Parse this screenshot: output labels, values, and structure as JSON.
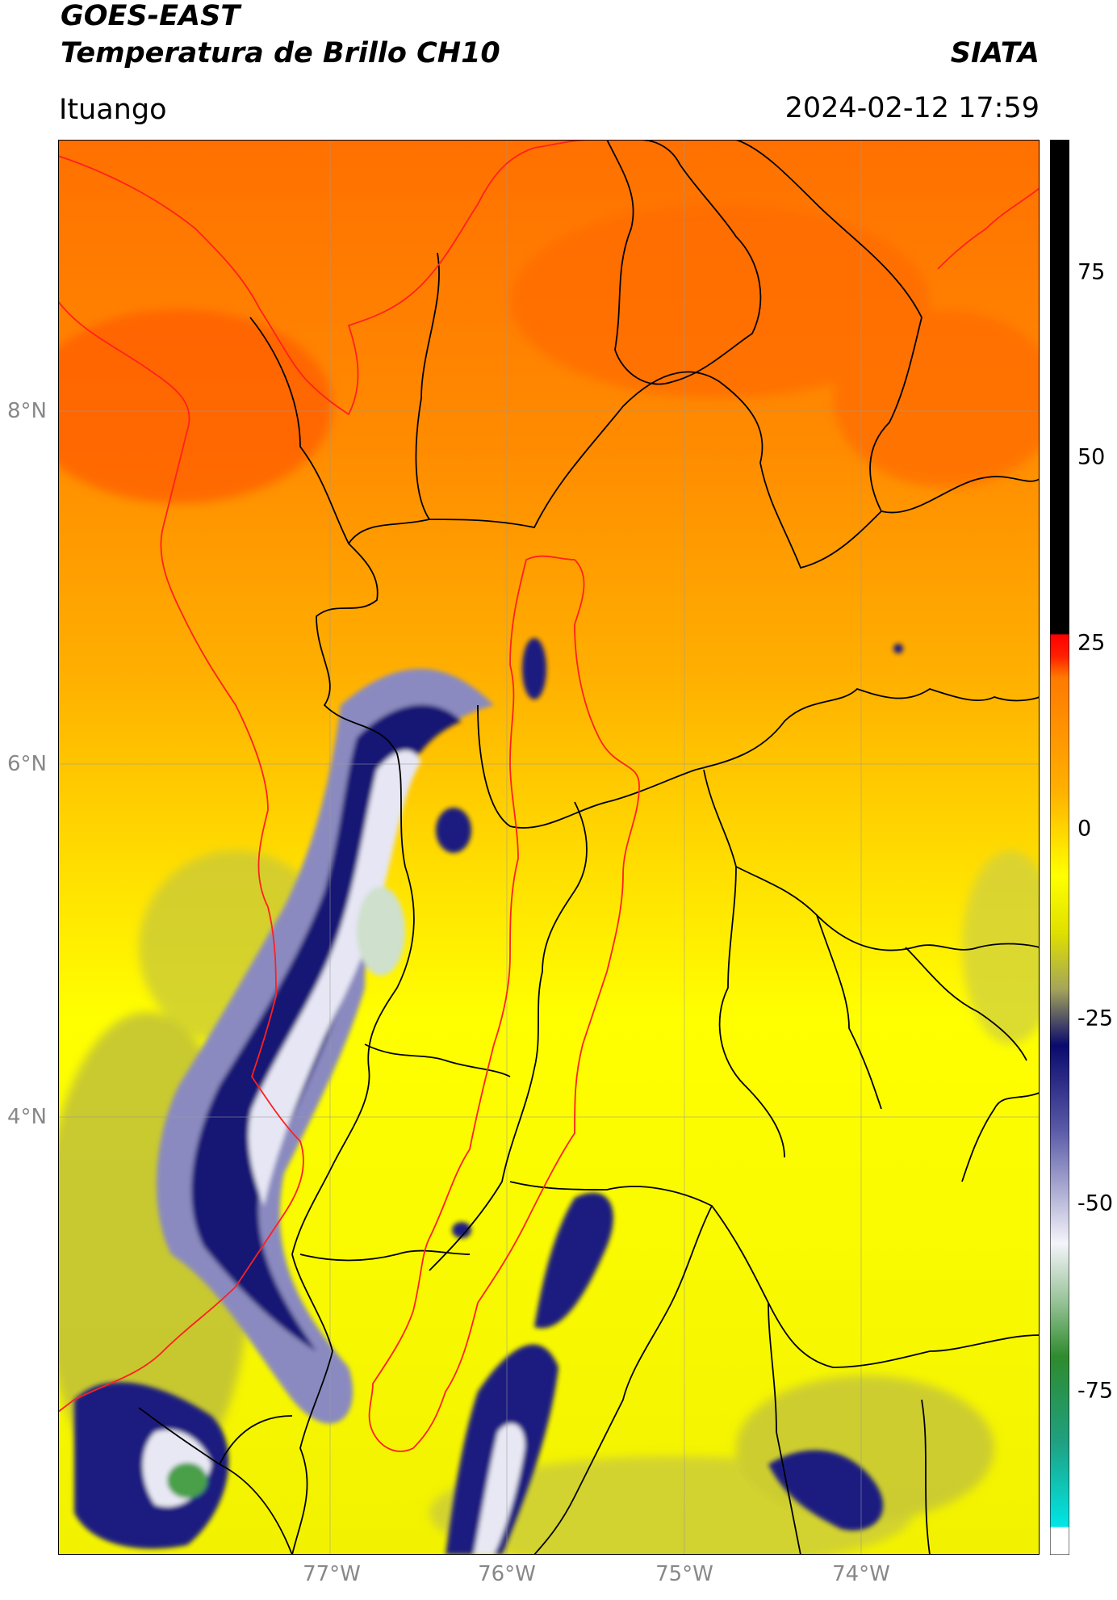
{
  "header": {
    "satellite": "GOES-EAST",
    "product": "Temperatura de Brillo CH10",
    "agency": "SIATA",
    "location": "Ituango",
    "datetime": "2024-02-12 17:59"
  },
  "map": {
    "lat_ticks": [
      "8°N",
      "6°N",
      "4°N"
    ],
    "lon_ticks": [
      "77°W",
      "76°W",
      "75°W",
      "74°W"
    ],
    "gridlines": true
  },
  "colorbar": {
    "ticks": [
      "75",
      "50",
      "25",
      "0",
      "-25",
      "-50",
      "-75"
    ],
    "colors": {
      "black": "#000000",
      "red": "#ff0000",
      "orange": "#ff7a00",
      "yellow": "#ffff00",
      "olive": "#a5a55a",
      "navy": "#0a0a6e",
      "white": "#f4f4fa",
      "green": "#2e8b2e",
      "cyan": "#00e6e6"
    }
  }
}
